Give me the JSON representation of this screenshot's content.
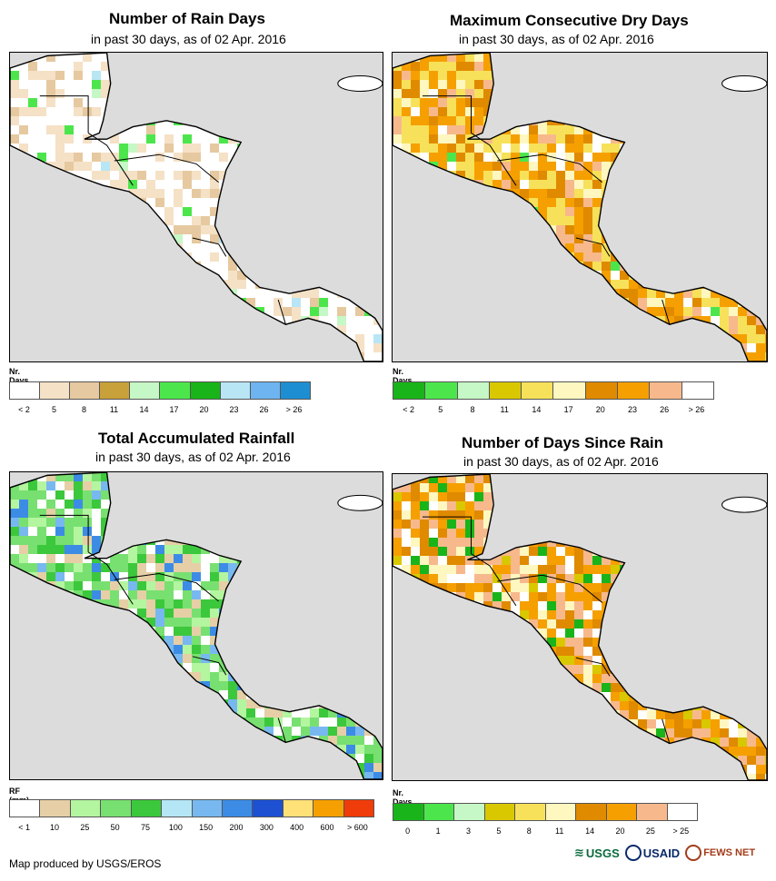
{
  "panels": [
    {
      "id": "rain-days",
      "title": "Number of Rain Days",
      "subtitle": "in past 30 days, as of 02 Apr. 2016",
      "legend_title": "Nr. Days",
      "legend_colors": [
        "#ffffff",
        "#f5e1c6",
        "#e6c9a0",
        "#c9a13a",
        "#c6f7c6",
        "#4ce64c",
        "#19b419",
        "#b8e6f5",
        "#6eb4f0",
        "#1e8ed2"
      ],
      "legend_ticks": [
        "< 2",
        "5",
        "8",
        "11",
        "14",
        "17",
        "20",
        "23",
        "26",
        "> 26"
      ]
    },
    {
      "id": "dry-days",
      "title": "Maximum Consecutive Dry Days",
      "subtitle": "in past 30 days, as of 02 Apr. 2016",
      "legend_title": "Nr. Days",
      "legend_colors": [
        "#19b419",
        "#4ce64c",
        "#c6f7c6",
        "#d9c800",
        "#f7e15a",
        "#fff7c0",
        "#e08a00",
        "#f5a000",
        "#f7b98c",
        "#ffffff"
      ],
      "legend_ticks": [
        "< 2",
        "5",
        "8",
        "11",
        "14",
        "17",
        "20",
        "23",
        "26",
        "> 26"
      ]
    },
    {
      "id": "total-rainfall",
      "title": "Total Accumulated Rainfall",
      "subtitle": "in past 30 days, as of 02 Apr. 2016",
      "legend_title": "RF (mm)",
      "legend_colors": [
        "#ffffff",
        "#e6cfa6",
        "#b4f5a0",
        "#78e070",
        "#3cc83c",
        "#b4e6f5",
        "#78b8f0",
        "#3c8ce6",
        "#1e50d2",
        "#ffe178",
        "#f5a000",
        "#f03c0a"
      ],
      "legend_ticks": [
        "< 1",
        "10",
        "25",
        "50",
        "75",
        "100",
        "150",
        "200",
        "300",
        "400",
        "600",
        "> 600"
      ]
    },
    {
      "id": "days-since-rain",
      "title": "Number of Days Since Rain",
      "subtitle": "in past 30 days, as of 02 Apr. 2016",
      "legend_title": "Nr. Days",
      "legend_colors": [
        "#19b419",
        "#4ce64c",
        "#c6f7c6",
        "#d9c800",
        "#f7e15a",
        "#fff7c0",
        "#e08a00",
        "#f5a000",
        "#f7b98c",
        "#ffffff"
      ],
      "legend_ticks": [
        "0",
        "1",
        "3",
        "5",
        "8",
        "11",
        "14",
        "20",
        "25",
        "> 25"
      ]
    }
  ],
  "footer": {
    "credit": "Map produced by USGS/EROS"
  },
  "logos": {
    "usgs": "USGS",
    "usaid": "USAID",
    "fews": "FEWS NET"
  }
}
